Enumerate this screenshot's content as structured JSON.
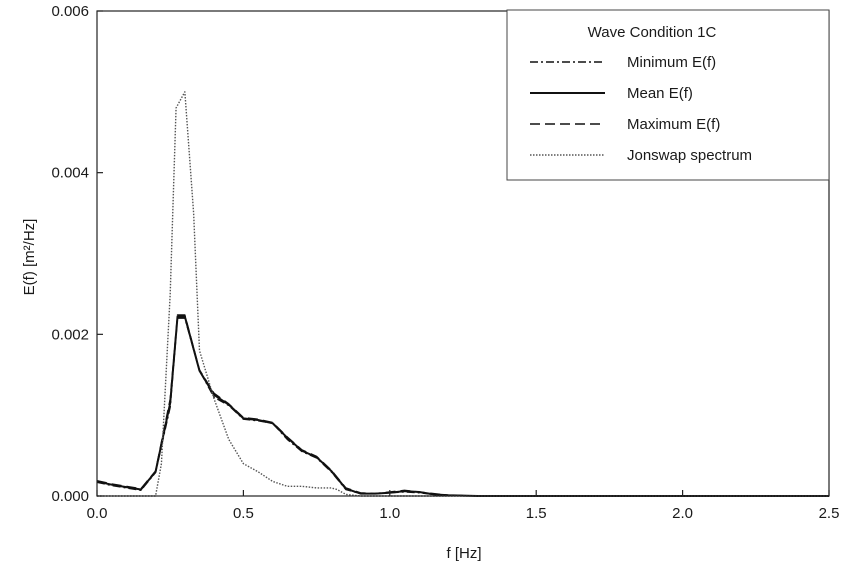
{
  "chart_data": {
    "type": "line",
    "xlabel": "f [Hz]",
    "ylabel": "E(f) [m²/Hz]",
    "xlim": [
      0,
      2.5
    ],
    "ylim": [
      0,
      0.006
    ],
    "xticks": [
      "0.0",
      "0.5",
      "1.0",
      "1.5",
      "2.0",
      "2.5"
    ],
    "yticks": [
      "0.000",
      "0.002",
      "0.004",
      "0.006"
    ],
    "grid": false,
    "legend_title": "Wave Condition 1C",
    "legend_position": "top-right",
    "series": [
      {
        "name": "Minimum E(f)",
        "style": "dash-dot",
        "color": "#111111",
        "x": [
          0.0,
          0.05,
          0.1,
          0.15,
          0.2,
          0.25,
          0.275,
          0.3,
          0.35,
          0.4,
          0.45,
          0.5,
          0.55,
          0.6,
          0.65,
          0.7,
          0.75,
          0.8,
          0.85,
          0.9,
          0.95,
          1.0,
          1.05,
          1.1,
          1.15,
          1.2,
          1.3,
          1.5,
          2.0,
          2.5
        ],
        "y": [
          0.00017,
          0.00013,
          0.0001,
          7e-05,
          0.00029,
          0.0011,
          0.0022,
          0.0022,
          0.00155,
          0.00122,
          0.00112,
          0.00095,
          0.00093,
          0.0009,
          0.0007,
          0.00055,
          0.00047,
          0.0003,
          8e-05,
          3e-05,
          3e-05,
          4e-05,
          5e-05,
          4e-05,
          2e-05,
          1e-05,
          0.0,
          0.0,
          0.0,
          0.0
        ]
      },
      {
        "name": "Mean E(f)",
        "style": "solid",
        "color": "#111111",
        "x": [
          0.0,
          0.05,
          0.1,
          0.15,
          0.2,
          0.25,
          0.275,
          0.3,
          0.35,
          0.4,
          0.45,
          0.5,
          0.55,
          0.6,
          0.65,
          0.7,
          0.75,
          0.8,
          0.85,
          0.9,
          0.95,
          1.0,
          1.05,
          1.1,
          1.15,
          1.2,
          1.3,
          1.5,
          2.0,
          2.5
        ],
        "y": [
          0.00018,
          0.00014,
          0.00011,
          8e-05,
          0.0003,
          0.00115,
          0.00222,
          0.00222,
          0.00155,
          0.00125,
          0.00113,
          0.00096,
          0.00094,
          0.0009,
          0.00072,
          0.00056,
          0.00048,
          0.00031,
          9e-05,
          3e-05,
          3e-05,
          4e-05,
          6e-05,
          5e-05,
          2e-05,
          1e-05,
          0.0,
          0.0,
          0.0,
          0.0
        ]
      },
      {
        "name": "Maximum E(f)",
        "style": "dashed",
        "color": "#111111",
        "x": [
          0.0,
          0.05,
          0.1,
          0.15,
          0.2,
          0.25,
          0.275,
          0.3,
          0.35,
          0.4,
          0.45,
          0.5,
          0.55,
          0.6,
          0.65,
          0.7,
          0.75,
          0.8,
          0.85,
          0.9,
          0.95,
          1.0,
          1.05,
          1.1,
          1.15,
          1.2,
          1.3,
          1.5,
          2.0,
          2.5
        ],
        "y": [
          0.00019,
          0.00015,
          0.00012,
          9e-05,
          0.00031,
          0.0012,
          0.00224,
          0.00224,
          0.00156,
          0.00127,
          0.00114,
          0.00097,
          0.00095,
          0.00091,
          0.00073,
          0.00057,
          0.00049,
          0.00032,
          0.0001,
          4e-05,
          3e-05,
          5e-05,
          7e-05,
          5e-05,
          3e-05,
          1e-05,
          0.0,
          0.0,
          0.0,
          0.0
        ]
      },
      {
        "name": "Jonswap spectrum",
        "style": "dotted",
        "color": "#555555",
        "x": [
          0.0,
          0.15,
          0.2,
          0.22,
          0.25,
          0.27,
          0.3,
          0.33,
          0.35,
          0.4,
          0.45,
          0.5,
          0.55,
          0.6,
          0.65,
          0.7,
          0.75,
          0.8,
          0.82,
          0.85,
          0.9,
          1.0,
          1.5,
          2.0,
          2.5
        ],
        "y": [
          0.0,
          0.0,
          0.0,
          0.0004,
          0.0025,
          0.0048,
          0.005,
          0.0035,
          0.0018,
          0.0012,
          0.0007,
          0.0004,
          0.0003,
          0.00018,
          0.00012,
          0.00012,
          0.0001,
          0.0001,
          8e-05,
          2e-05,
          0.0,
          0.0,
          0.0,
          0.0,
          0.0
        ]
      }
    ]
  }
}
